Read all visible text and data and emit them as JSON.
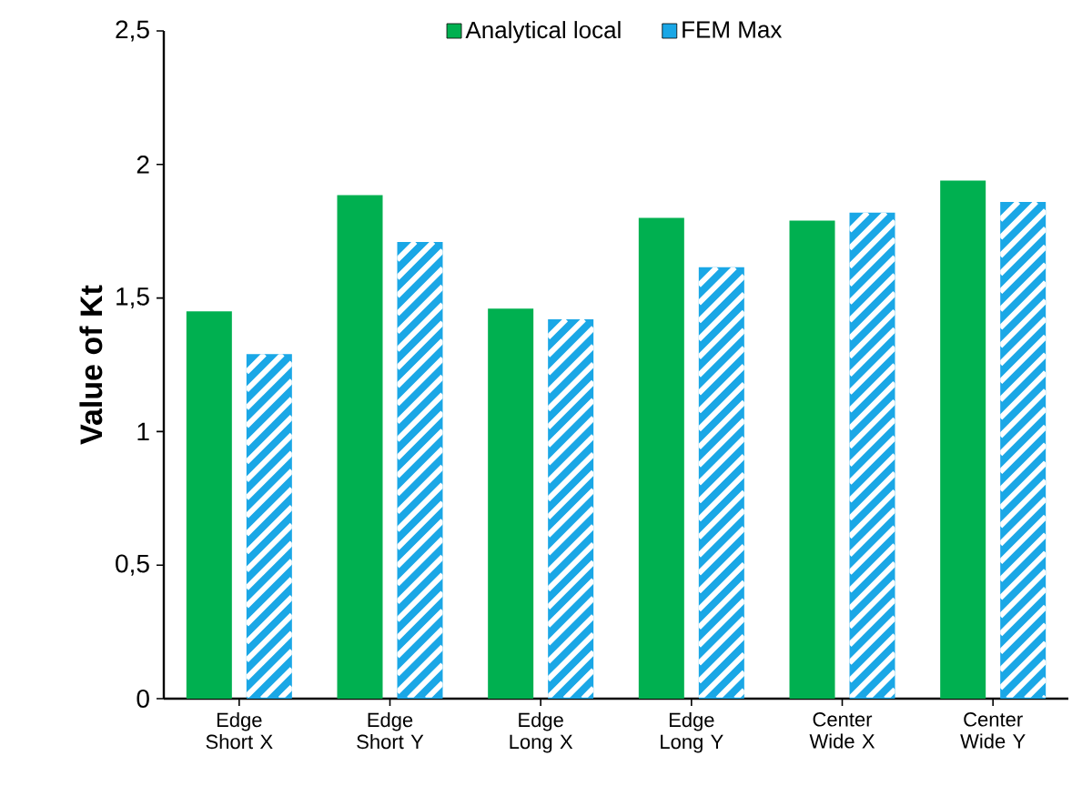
{
  "chart_data": {
    "type": "bar",
    "ylabel": "Value of Kt",
    "categories": [
      "Edge Short X",
      "Edge Short Y",
      "Edge Long X",
      "Edge Long Y",
      "Center Wide X",
      "Center Wide Y"
    ],
    "series": [
      {
        "name": "Analytical local",
        "color": "#00b050",
        "values": [
          1.45,
          1.885,
          1.46,
          1.8,
          1.79,
          1.94
        ]
      },
      {
        "name": "FEM Max",
        "color": "#1aa7e6",
        "values": [
          1.29,
          1.71,
          1.42,
          1.615,
          1.82,
          1.86
        ]
      }
    ],
    "ylim": [
      0,
      2.5
    ],
    "yticks": [
      0,
      {
        "value": 0.5,
        "label": "0,5"
      },
      1,
      {
        "value": 1.5,
        "label": "1,5"
      },
      2,
      {
        "value": 2.5,
        "label": "2,5"
      }
    ],
    "legend": "top",
    "grid": false
  }
}
